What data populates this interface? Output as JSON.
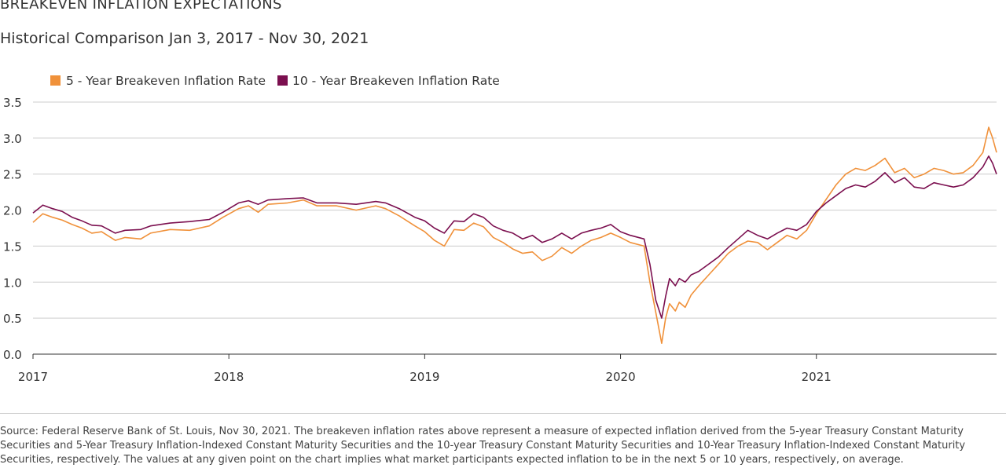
{
  "header": {
    "title": "BREAKEVEN INFLATION EXPECTATIONS",
    "subtitle": "Historical Comparison Jan 3, 2017 - Nov 30, 2021"
  },
  "footer": {
    "source": "Source: Federal Reserve Bank of St. Louis, Nov 30, 2021. The breakeven inflation rates above represent a measure of expected inflation derived from the 5-year Treasury Constant Maturity Securities and 5-Year Treasury Inflation-Indexed Constant Maturity Securities and the 10-year Treasury Constant Maturity Securities and 10-Year Treasury Inflation-Indexed Constant Maturity Securities, respectively. The values at any given point on the chart implies what market participants expected inflation to be in the next 5 or 10 years, respectively, on average."
  },
  "colors": {
    "five_year": "#f0913a",
    "ten_year": "#7b0f4f",
    "grid": "#cccccc",
    "axis": "#333333"
  },
  "chart_data": {
    "type": "line",
    "title": "BREAKEVEN INFLATION EXPECTATIONS",
    "subtitle": "Historical Comparison Jan 3, 2017 - Nov 30, 2021",
    "xlabel": "",
    "ylabel": "",
    "xlim": [
      2017.0,
      2021.92
    ],
    "ylim": [
      0,
      3.5
    ],
    "yticks": [
      0.0,
      0.5,
      1.0,
      1.5,
      2.0,
      2.5,
      3.0,
      3.5
    ],
    "ytick_labels": [
      "0.0",
      "0.5",
      "1.0",
      "1.5",
      "2.0",
      "2.5",
      "3.0",
      "3.5"
    ],
    "xticks": [
      2017,
      2018,
      2019,
      2020,
      2021
    ],
    "xtick_labels": [
      "2017",
      "2018",
      "2019",
      "2020",
      "2021"
    ],
    "grid": "horizontal",
    "legend_position": "top-left",
    "series": [
      {
        "name": "5 - Year Breakeven Inflation Rate",
        "color": "#f0913a",
        "x": [
          2017.0,
          2017.05,
          2017.1,
          2017.15,
          2017.2,
          2017.25,
          2017.3,
          2017.35,
          2017.42,
          2017.47,
          2017.55,
          2017.6,
          2017.7,
          2017.8,
          2017.9,
          2017.97,
          2018.05,
          2018.1,
          2018.15,
          2018.2,
          2018.3,
          2018.38,
          2018.45,
          2018.55,
          2018.65,
          2018.75,
          2018.8,
          2018.87,
          2018.95,
          2019.0,
          2019.05,
          2019.1,
          2019.15,
          2019.2,
          2019.25,
          2019.3,
          2019.35,
          2019.4,
          2019.45,
          2019.5,
          2019.55,
          2019.6,
          2019.65,
          2019.7,
          2019.75,
          2019.8,
          2019.85,
          2019.9,
          2019.95,
          2020.0,
          2020.05,
          2020.12,
          2020.15,
          2020.18,
          2020.21,
          2020.23,
          2020.25,
          2020.28,
          2020.3,
          2020.33,
          2020.36,
          2020.4,
          2020.45,
          2020.5,
          2020.55,
          2020.6,
          2020.65,
          2020.7,
          2020.75,
          2020.8,
          2020.85,
          2020.9,
          2020.95,
          2021.0,
          2021.05,
          2021.1,
          2021.15,
          2021.2,
          2021.25,
          2021.3,
          2021.35,
          2021.4,
          2021.45,
          2021.5,
          2021.55,
          2021.6,
          2021.65,
          2021.7,
          2021.75,
          2021.8,
          2021.85,
          2021.88,
          2021.9,
          2021.92
        ],
        "values": [
          1.83,
          1.95,
          1.9,
          1.86,
          1.8,
          1.75,
          1.68,
          1.7,
          1.58,
          1.62,
          1.6,
          1.68,
          1.73,
          1.72,
          1.78,
          1.9,
          2.02,
          2.06,
          1.97,
          2.08,
          2.1,
          2.14,
          2.06,
          2.06,
          2.0,
          2.06,
          2.02,
          1.92,
          1.78,
          1.7,
          1.58,
          1.5,
          1.73,
          1.72,
          1.82,
          1.77,
          1.62,
          1.55,
          1.46,
          1.4,
          1.42,
          1.3,
          1.36,
          1.48,
          1.4,
          1.5,
          1.58,
          1.62,
          1.68,
          1.62,
          1.55,
          1.5,
          1.0,
          0.58,
          0.15,
          0.5,
          0.7,
          0.6,
          0.72,
          0.65,
          0.82,
          0.95,
          1.1,
          1.25,
          1.4,
          1.5,
          1.57,
          1.55,
          1.45,
          1.55,
          1.65,
          1.6,
          1.72,
          1.95,
          2.15,
          2.35,
          2.5,
          2.58,
          2.55,
          2.62,
          2.72,
          2.52,
          2.58,
          2.45,
          2.5,
          2.58,
          2.55,
          2.5,
          2.52,
          2.62,
          2.8,
          3.15,
          3.0,
          2.8
        ]
      },
      {
        "name": "10 - Year Breakeven Inflation Rate",
        "color": "#7b0f4f",
        "x": [
          2017.0,
          2017.05,
          2017.1,
          2017.15,
          2017.2,
          2017.25,
          2017.3,
          2017.35,
          2017.42,
          2017.47,
          2017.55,
          2017.6,
          2017.7,
          2017.8,
          2017.9,
          2017.97,
          2018.05,
          2018.1,
          2018.15,
          2018.2,
          2018.3,
          2018.38,
          2018.45,
          2018.55,
          2018.65,
          2018.75,
          2018.8,
          2018.87,
          2018.95,
          2019.0,
          2019.05,
          2019.1,
          2019.15,
          2019.2,
          2019.25,
          2019.3,
          2019.35,
          2019.4,
          2019.45,
          2019.5,
          2019.55,
          2019.6,
          2019.65,
          2019.7,
          2019.75,
          2019.8,
          2019.85,
          2019.9,
          2019.95,
          2020.0,
          2020.05,
          2020.12,
          2020.15,
          2020.18,
          2020.21,
          2020.23,
          2020.25,
          2020.28,
          2020.3,
          2020.33,
          2020.36,
          2020.4,
          2020.45,
          2020.5,
          2020.55,
          2020.6,
          2020.65,
          2020.7,
          2020.75,
          2020.8,
          2020.85,
          2020.9,
          2020.95,
          2021.0,
          2021.05,
          2021.1,
          2021.15,
          2021.2,
          2021.25,
          2021.3,
          2021.35,
          2021.4,
          2021.45,
          2021.5,
          2021.55,
          2021.6,
          2021.65,
          2021.7,
          2021.75,
          2021.8,
          2021.85,
          2021.88,
          2021.9,
          2021.92
        ],
        "values": [
          1.96,
          2.07,
          2.02,
          1.98,
          1.9,
          1.85,
          1.79,
          1.78,
          1.68,
          1.72,
          1.73,
          1.78,
          1.82,
          1.84,
          1.87,
          1.97,
          2.1,
          2.13,
          2.08,
          2.14,
          2.16,
          2.17,
          2.1,
          2.1,
          2.08,
          2.12,
          2.1,
          2.02,
          1.9,
          1.85,
          1.75,
          1.68,
          1.85,
          1.84,
          1.95,
          1.9,
          1.78,
          1.72,
          1.68,
          1.6,
          1.65,
          1.55,
          1.6,
          1.68,
          1.6,
          1.68,
          1.72,
          1.75,
          1.8,
          1.7,
          1.65,
          1.6,
          1.25,
          0.75,
          0.5,
          0.8,
          1.05,
          0.95,
          1.05,
          1.0,
          1.1,
          1.15,
          1.25,
          1.35,
          1.48,
          1.6,
          1.72,
          1.65,
          1.6,
          1.68,
          1.75,
          1.72,
          1.8,
          1.98,
          2.1,
          2.2,
          2.3,
          2.35,
          2.32,
          2.4,
          2.52,
          2.38,
          2.45,
          2.32,
          2.3,
          2.38,
          2.35,
          2.32,
          2.35,
          2.45,
          2.6,
          2.75,
          2.65,
          2.5
        ]
      }
    ]
  }
}
